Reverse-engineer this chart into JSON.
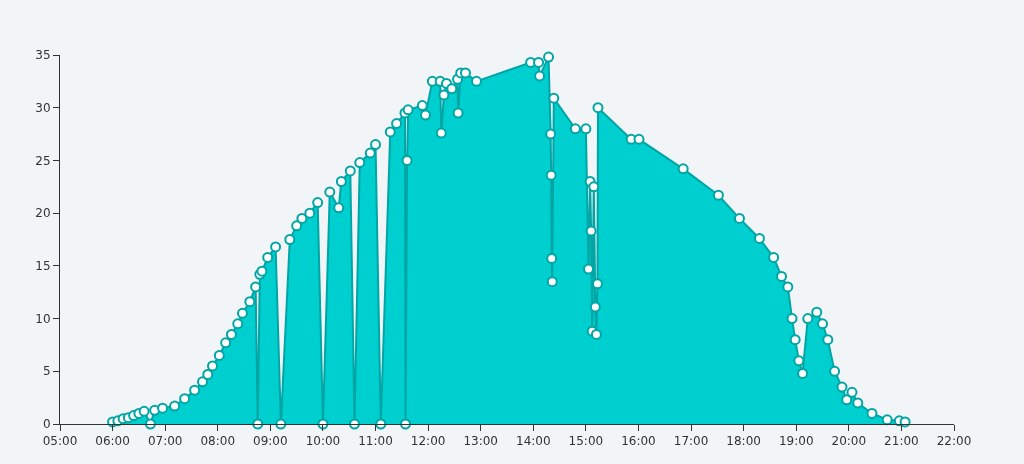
{
  "chart_data": {
    "type": "area",
    "marker": "circle",
    "grid": false,
    "legend": false,
    "xlim": [
      5,
      22
    ],
    "ylim": [
      0,
      35
    ],
    "xticks": [
      {
        "value": 5,
        "label": "05:00"
      },
      {
        "value": 6,
        "label": "06:00"
      },
      {
        "value": 7,
        "label": "07:00"
      },
      {
        "value": 8,
        "label": "08:00"
      },
      {
        "value": 9,
        "label": "09:00"
      },
      {
        "value": 10,
        "label": "10:00"
      },
      {
        "value": 11,
        "label": "11:00"
      },
      {
        "value": 12,
        "label": "12:00"
      },
      {
        "value": 13,
        "label": "13:00"
      },
      {
        "value": 14,
        "label": "14:00"
      },
      {
        "value": 15,
        "label": "15:00"
      },
      {
        "value": 16,
        "label": "16:00"
      },
      {
        "value": 17,
        "label": "17:00"
      },
      {
        "value": 18,
        "label": "18:00"
      },
      {
        "value": 19,
        "label": "19:00"
      },
      {
        "value": 20,
        "label": "20:00"
      },
      {
        "value": 21,
        "label": "21:00"
      },
      {
        "value": 22,
        "label": "22:00"
      }
    ],
    "yticks": [
      0,
      5,
      10,
      15,
      20,
      25,
      30,
      35
    ],
    "series": [
      {
        "color": "#00cfcf",
        "x": [
          6.0,
          6.1,
          6.2,
          6.3,
          6.4,
          6.5,
          6.6,
          6.72,
          6.8,
          6.95,
          7.18,
          7.37,
          7.56,
          7.71,
          7.81,
          7.9,
          8.03,
          8.15,
          8.26,
          8.38,
          8.47,
          8.61,
          8.72,
          8.76,
          8.8,
          8.84,
          8.95,
          9.1,
          9.2,
          9.37,
          9.5,
          9.6,
          9.75,
          9.9,
          10.0,
          10.13,
          10.3,
          10.35,
          10.52,
          10.6,
          10.7,
          10.9,
          11.0,
          11.1,
          11.28,
          11.4,
          11.56,
          11.57,
          11.6,
          11.62,
          11.89,
          11.95,
          12.08,
          12.23,
          12.25,
          12.3,
          12.35,
          12.45,
          12.56,
          12.57,
          12.62,
          12.71,
          12.92,
          13.95,
          14.1,
          14.12,
          14.29,
          14.33,
          14.34,
          14.35,
          14.36,
          14.39,
          14.8,
          15.0,
          15.05,
          15.08,
          15.1,
          15.12,
          15.15,
          15.18,
          15.2,
          15.22,
          15.23,
          15.86,
          16.01,
          16.85,
          17.52,
          17.92,
          18.3,
          18.57,
          18.72,
          18.84,
          18.92,
          18.98,
          19.05,
          19.12,
          19.22,
          19.39,
          19.5,
          19.6,
          19.73,
          19.87,
          19.96,
          20.06,
          20.17,
          20.44,
          20.73,
          20.96,
          21.07
        ],
        "values": [
          0.2,
          0.3,
          0.5,
          0.6,
          0.8,
          1.0,
          1.2,
          0,
          1.3,
          1.5,
          1.7,
          2.4,
          3.2,
          4.0,
          4.7,
          5.5,
          6.5,
          7.7,
          8.5,
          9.5,
          10.5,
          11.6,
          13.0,
          0,
          14.2,
          14.5,
          15.8,
          16.8,
          0,
          17.5,
          18.8,
          19.5,
          20.0,
          21.0,
          0,
          22.0,
          20.5,
          23.0,
          24.0,
          0,
          24.8,
          25.7,
          26.5,
          0,
          27.7,
          28.5,
          29.5,
          0,
          25.0,
          29.8,
          30.2,
          29.3,
          32.5,
          32.5,
          27.6,
          31.2,
          32.3,
          31.8,
          32.7,
          29.5,
          33.3,
          33.3,
          32.5,
          34.3,
          34.3,
          33.0,
          34.8,
          27.5,
          23.6,
          15.7,
          13.5,
          30.9,
          28.0,
          28.0,
          14.7,
          23.0,
          18.3,
          8.8,
          22.5,
          11.1,
          8.5,
          13.3,
          30.0,
          27.0,
          27.0,
          24.2,
          21.7,
          19.5,
          17.6,
          15.8,
          14.0,
          13.0,
          10.0,
          8.0,
          6.0,
          4.8,
          10.0,
          10.6,
          9.5,
          8.0,
          5.0,
          3.5,
          2.3,
          3.0,
          2.0,
          1.0,
          0.4,
          0.3,
          0.2
        ]
      }
    ]
  }
}
